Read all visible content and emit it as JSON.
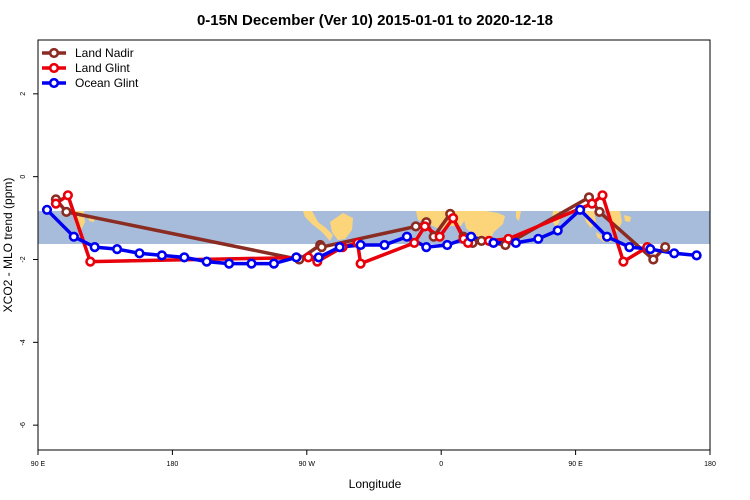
{
  "chart_data": {
    "type": "line",
    "title": "0-15N December (Ver 10)   2015-01-01 to 2020-12-18",
    "xlabel": "Longitude",
    "ylabel": "XCO2 - MLO trend (ppm)",
    "xlim": [
      90,
      540
    ],
    "ylim": [
      -6.6,
      3.3
    ],
    "x_ticks": [
      {
        "value": 90,
        "label": "90 E"
      },
      {
        "value": 180,
        "label": "180"
      },
      {
        "value": 270,
        "label": "90 W"
      },
      {
        "value": 360,
        "label": "0"
      },
      {
        "value": 450,
        "label": "90 E"
      },
      {
        "value": 540,
        "label": "180"
      }
    ],
    "y_ticks": [
      {
        "value": 2,
        "label": "2"
      },
      {
        "value": 0,
        "label": "0"
      },
      {
        "value": -2,
        "label": "-2"
      },
      {
        "value": -4,
        "label": "-4"
      },
      {
        "value": -6,
        "label": "-6"
      }
    ],
    "latitude_band": {
      "y_top": -0.8,
      "y_bottom": -1.6,
      "ocean_color": "#a7bcdb",
      "land_color": "#fcd57a"
    },
    "legend_position": "top-left",
    "series": [
      {
        "name": "Land Nadir",
        "color": "#8b2c23",
        "points": [
          [
            102,
            -0.55
          ],
          [
            109,
            -0.85
          ],
          [
            265,
            -2.0
          ],
          [
            279,
            -1.65
          ],
          [
            280,
            -1.7
          ],
          [
            343,
            -1.2
          ],
          [
            350,
            -1.1
          ],
          [
            355,
            -1.45
          ],
          [
            366,
            -0.9
          ],
          [
            375,
            -1.45
          ],
          [
            381,
            -1.6
          ],
          [
            387,
            -1.55
          ],
          [
            403,
            -1.65
          ],
          [
            459,
            -0.5
          ],
          [
            466,
            -0.85
          ],
          [
            502,
            -2.0
          ],
          [
            510,
            -1.7
          ]
        ]
      },
      {
        "name": "Land Glint",
        "color": "#e8000b",
        "points": [
          [
            102,
            -0.65
          ],
          [
            110,
            -0.45
          ],
          [
            125,
            -2.05
          ],
          [
            271,
            -1.95
          ],
          [
            277,
            -2.05
          ],
          [
            294,
            -1.7
          ],
          [
            304,
            -1.6
          ],
          [
            306,
            -2.1
          ],
          [
            342,
            -1.6
          ],
          [
            349,
            -1.2
          ],
          [
            359,
            -1.45
          ],
          [
            368,
            -1.0
          ],
          [
            375,
            -1.5
          ],
          [
            378,
            -1.6
          ],
          [
            392,
            -1.55
          ],
          [
            405,
            -1.5
          ],
          [
            461,
            -0.65
          ],
          [
            468,
            -0.45
          ],
          [
            482,
            -2.05
          ],
          [
            498,
            -1.7
          ]
        ]
      },
      {
        "name": "Ocean Glint",
        "color": "#0000f0",
        "points": [
          [
            96,
            -0.8
          ],
          [
            114,
            -1.45
          ],
          [
            128,
            -1.7
          ],
          [
            143,
            -1.75
          ],
          [
            158,
            -1.85
          ],
          [
            173,
            -1.9
          ],
          [
            188,
            -1.95
          ],
          [
            203,
            -2.05
          ],
          [
            218,
            -2.1
          ],
          [
            233,
            -2.1
          ],
          [
            248,
            -2.1
          ],
          [
            263,
            -1.95
          ],
          [
            278,
            -1.95
          ],
          [
            292,
            -1.7
          ],
          [
            306,
            -1.65
          ],
          [
            322,
            -1.65
          ],
          [
            337,
            -1.45
          ],
          [
            350,
            -1.7
          ],
          [
            364,
            -1.65
          ],
          [
            380,
            -1.45
          ],
          [
            395,
            -1.6
          ],
          [
            410,
            -1.6
          ],
          [
            425,
            -1.5
          ],
          [
            438,
            -1.3
          ],
          [
            453,
            -0.8
          ],
          [
            471,
            -1.45
          ],
          [
            486,
            -1.7
          ],
          [
            500,
            -1.75
          ],
          [
            516,
            -1.85
          ],
          [
            531,
            -1.9
          ]
        ]
      }
    ]
  }
}
